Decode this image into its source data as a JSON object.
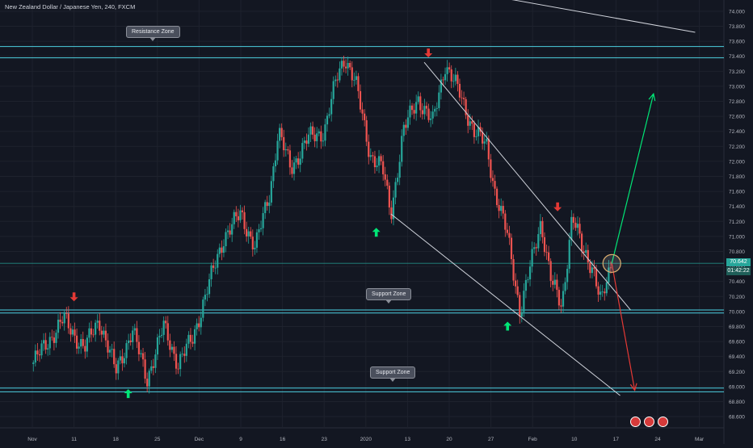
{
  "header": {
    "title": "New Zealand Dollar / Japanese Yen, 240, FXCM"
  },
  "annotations": {
    "resistance_label": "Resistance Zone",
    "support_label_1": "Support Zone",
    "support_label_2": "Support Zone"
  },
  "price_badge": {
    "price": "70.642",
    "countdown": "01:42:22"
  },
  "colors": {
    "background": "#131722",
    "up": "#26a69a",
    "down": "#ef5350",
    "zone_line": "#4dd0e1",
    "trendline": "#d1d4dc",
    "arrow_up": "#00e676",
    "arrow_down": "#e53935"
  },
  "chart_data": {
    "type": "candlestick",
    "title": "New Zealand Dollar / Japanese Yen, 240, FXCM",
    "x_tick_labels": [
      "Nov",
      "11",
      "18",
      "25",
      "Dec",
      "9",
      "16",
      "23",
      "2020",
      "13",
      "20",
      "27",
      "Feb",
      "10",
      "17",
      "24",
      "Mar"
    ],
    "y_tick_labels": [
      "74.000",
      "73.800",
      "73.600",
      "73.400",
      "73.200",
      "73.000",
      "72.800",
      "72.600",
      "72.400",
      "72.200",
      "72.000",
      "71.800",
      "71.600",
      "71.400",
      "71.200",
      "71.000",
      "70.800",
      "70.600",
      "70.400",
      "70.200",
      "70.000",
      "69.800",
      "69.600",
      "69.400",
      "69.200",
      "69.000",
      "68.800",
      "68.600"
    ],
    "ylim": [
      68.45,
      74.15
    ],
    "grid": true,
    "last_price": 70.642,
    "price_path": [
      {
        "x": 0.0,
        "y": 69.3
      },
      {
        "x": 1.5,
        "y": 69.9
      },
      {
        "x": 2.5,
        "y": 69.5
      },
      {
        "x": 3.2,
        "y": 69.9
      },
      {
        "x": 4.0,
        "y": 69.2
      },
      {
        "x": 4.8,
        "y": 69.75
      },
      {
        "x": 5.5,
        "y": 69.1
      },
      {
        "x": 6.3,
        "y": 69.8
      },
      {
        "x": 7.0,
        "y": 69.3
      },
      {
        "x": 7.7,
        "y": 69.65
      },
      {
        "x": 8.4,
        "y": 70.3
      },
      {
        "x": 9.2,
        "y": 71.0
      },
      {
        "x": 10.0,
        "y": 71.3
      },
      {
        "x": 10.7,
        "y": 70.85
      },
      {
        "x": 11.4,
        "y": 71.6
      },
      {
        "x": 11.8,
        "y": 72.4
      },
      {
        "x": 12.4,
        "y": 71.9
      },
      {
        "x": 13.2,
        "y": 72.3
      },
      {
        "x": 14.0,
        "y": 72.4
      },
      {
        "x": 14.6,
        "y": 73.1
      },
      {
        "x": 15.0,
        "y": 73.4
      },
      {
        "x": 15.5,
        "y": 73.05
      },
      {
        "x": 16.2,
        "y": 72.1
      },
      {
        "x": 16.8,
        "y": 71.9
      },
      {
        "x": 17.2,
        "y": 71.3
      },
      {
        "x": 17.8,
        "y": 72.4
      },
      {
        "x": 18.5,
        "y": 72.85
      },
      {
        "x": 19.2,
        "y": 72.5
      },
      {
        "x": 19.8,
        "y": 73.3
      },
      {
        "x": 20.5,
        "y": 72.9
      },
      {
        "x": 21.2,
        "y": 72.4
      },
      {
        "x": 21.8,
        "y": 72.2
      },
      {
        "x": 22.2,
        "y": 71.6
      },
      {
        "x": 22.8,
        "y": 71.0
      },
      {
        "x": 23.4,
        "y": 70.0
      },
      {
        "x": 23.9,
        "y": 70.6
      },
      {
        "x": 24.4,
        "y": 71.2
      },
      {
        "x": 24.9,
        "y": 70.4
      },
      {
        "x": 25.4,
        "y": 70.05
      },
      {
        "x": 25.9,
        "y": 71.3
      },
      {
        "x": 26.4,
        "y": 70.8
      },
      {
        "x": 26.9,
        "y": 70.6
      },
      {
        "x": 27.3,
        "y": 70.1
      },
      {
        "x": 27.8,
        "y": 70.64
      }
    ],
    "levels": {
      "resistance_zone": [
        73.38,
        73.53
      ],
      "support_zone_1": [
        69.98,
        70.02
      ],
      "support_zone_2": [
        68.93,
        68.98
      ],
      "current_price_line": 70.642
    },
    "trendlines": [
      {
        "from": {
          "x": 18.8,
          "y": 73.32
        },
        "to": {
          "x": 28.7,
          "y": 70.02
        }
      },
      {
        "from": {
          "x": 17.2,
          "y": 71.3
        },
        "to": {
          "x": 28.2,
          "y": 68.88
        }
      },
      {
        "from": {
          "x": 22.5,
          "y": 74.18
        },
        "to": {
          "x": 31.8,
          "y": 73.72
        }
      }
    ],
    "signal_arrows": [
      {
        "direction": "down",
        "x": 2.0,
        "y": 70.2
      },
      {
        "direction": "up",
        "x": 4.6,
        "y": 68.9
      },
      {
        "direction": "up",
        "x": 16.5,
        "y": 71.05
      },
      {
        "direction": "down",
        "x": 19.0,
        "y": 73.45
      },
      {
        "direction": "up",
        "x": 22.8,
        "y": 69.8
      },
      {
        "direction": "down",
        "x": 25.2,
        "y": 71.4
      }
    ],
    "projection": [
      {
        "direction": "up",
        "from": {
          "x": 27.8,
          "y": 70.64
        },
        "to": {
          "x": 29.8,
          "y": 72.9
        }
      },
      {
        "direction": "down",
        "from": {
          "x": 27.8,
          "y": 70.64
        },
        "to": {
          "x": 28.9,
          "y": 68.95
        }
      }
    ],
    "highlight_point": {
      "x": 27.8,
      "y": 70.64
    }
  }
}
